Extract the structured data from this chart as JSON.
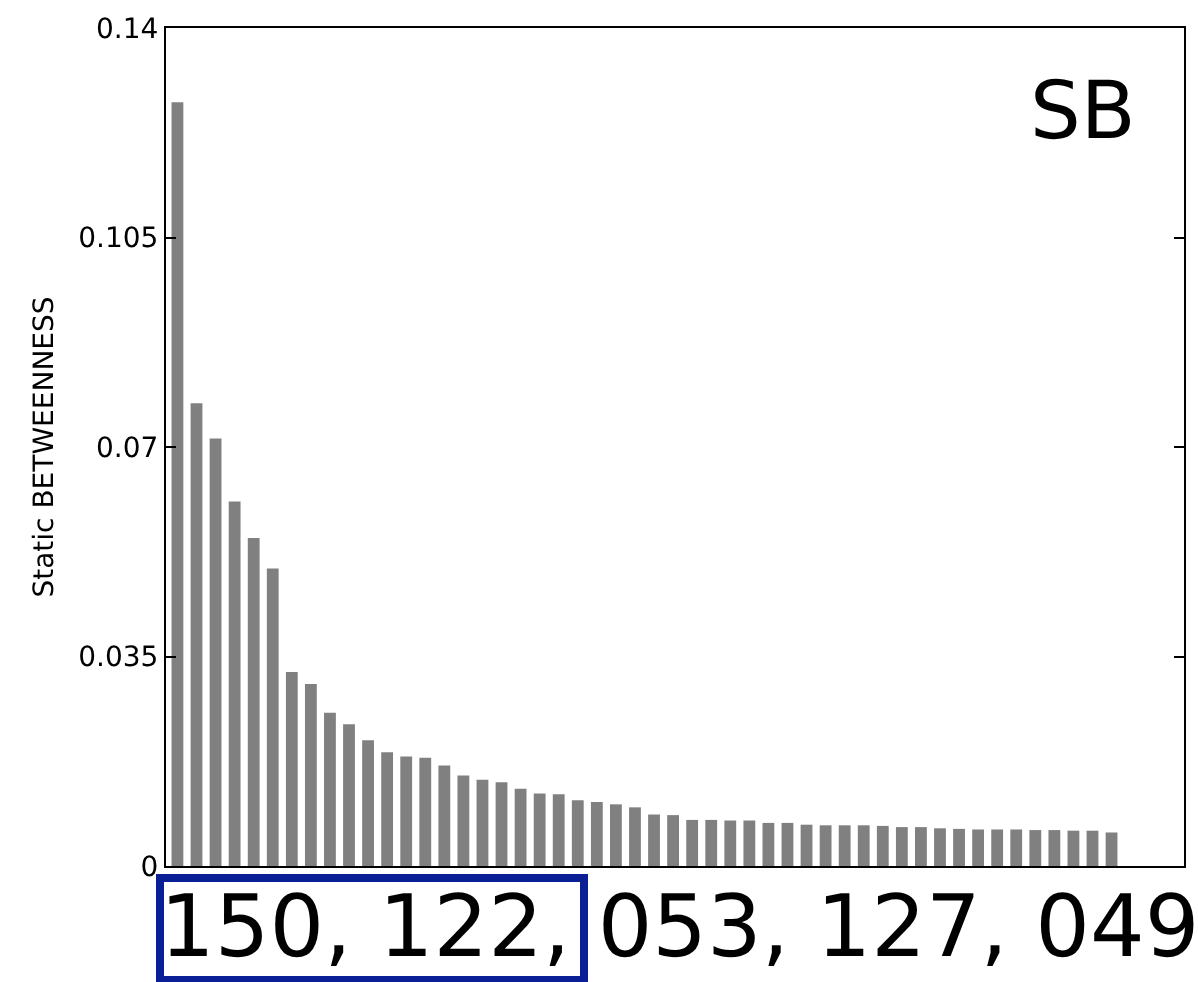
{
  "chart_data": {
    "type": "bar",
    "ylabel": "Static BETWEENNESS",
    "categories": [
      null,
      null,
      null,
      null,
      null,
      null,
      null,
      null,
      null,
      null,
      null,
      null,
      null,
      null,
      null,
      null,
      null,
      null,
      null,
      null,
      null,
      null,
      null,
      null,
      null,
      null,
      null,
      null,
      null,
      null,
      null,
      null,
      null,
      null,
      null,
      null,
      null,
      null,
      null,
      null,
      null,
      null,
      null,
      null,
      null,
      null,
      null,
      null,
      null,
      null
    ],
    "values": [
      0.1276,
      0.0773,
      0.0714,
      0.0609,
      0.0548,
      0.0497,
      0.0324,
      0.0304,
      0.0256,
      0.0237,
      0.021,
      0.019,
      0.0183,
      0.0181,
      0.0168,
      0.0151,
      0.0144,
      0.014,
      0.0129,
      0.0121,
      0.012,
      0.011,
      0.0107,
      0.0103,
      0.0098,
      0.0086,
      0.0085,
      0.0077,
      0.0077,
      0.0076,
      0.0076,
      0.0072,
      0.0072,
      0.0069,
      0.0068,
      0.0068,
      0.0068,
      0.0067,
      0.0065,
      0.0065,
      0.0063,
      0.0062,
      0.0061,
      0.0061,
      0.0061,
      0.006,
      0.006,
      0.0059,
      0.0059,
      0.0056
    ],
    "color": "#808080",
    "ylim": [
      0,
      0.14
    ],
    "yticks": [
      0,
      0.035,
      0.07,
      0.105,
      0.14
    ],
    "tick_labels": "y",
    "annotations": [
      "SB",
      "150, 122, 053, 127, 049"
    ]
  }
}
